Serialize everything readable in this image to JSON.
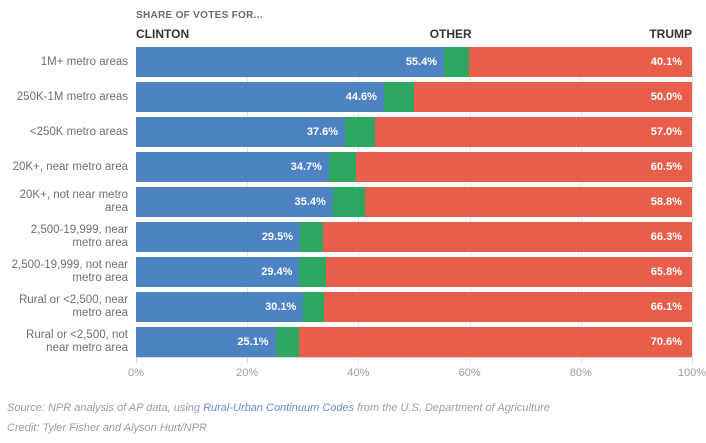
{
  "header": {
    "kicker": "SHARE OF VOTES FOR...",
    "left_label": "CLINTON",
    "center_label": "OTHER",
    "right_label": "TRUMP"
  },
  "chart_data": {
    "type": "bar",
    "stacked": true,
    "orientation": "horizontal",
    "title": "SHARE OF VOTES FOR...",
    "series_names": [
      "Clinton",
      "Other",
      "Trump"
    ],
    "xlim": [
      0,
      100
    ],
    "x_ticks": [
      "0%",
      "20%",
      "40%",
      "60%",
      "80%",
      "100%"
    ],
    "grid": true,
    "colors": {
      "clinton": "#4d82c3",
      "other": "#2ea860",
      "trump": "#e95d4b"
    },
    "rows": [
      {
        "label": "1M+ metro areas",
        "clinton": 55.4,
        "other": 4.5,
        "trump": 40.1
      },
      {
        "label": "250K-1M metro areas",
        "clinton": 44.6,
        "other": 5.4,
        "trump": 50.0
      },
      {
        "label": "<250K metro areas",
        "clinton": 37.6,
        "other": 5.4,
        "trump": 57.0
      },
      {
        "label": "20K+, near metro area",
        "clinton": 34.7,
        "other": 4.8,
        "trump": 60.5
      },
      {
        "label": "20K+, not near metro area",
        "clinton": 35.4,
        "other": 5.8,
        "trump": 58.8
      },
      {
        "label": "2,500-19,999, near metro area",
        "clinton": 29.5,
        "other": 4.2,
        "trump": 66.3
      },
      {
        "label": "2,500-19,999, not near metro area",
        "clinton": 29.4,
        "other": 4.8,
        "trump": 65.8
      },
      {
        "label": "Rural or <2,500, near metro area",
        "clinton": 30.1,
        "other": 3.8,
        "trump": 66.1
      },
      {
        "label": "Rural or <2,500, not near metro area",
        "clinton": 25.1,
        "other": 4.3,
        "trump": 70.6
      }
    ]
  },
  "footer": {
    "source_prefix": "Source: NPR analysis of AP data, using ",
    "source_link": "Rural-Urban Continuum Codes",
    "source_suffix": " from the U.S. Department of Agriculture",
    "credit": "Credit: Tyler Fisher and Alyson Hurt/NPR"
  }
}
